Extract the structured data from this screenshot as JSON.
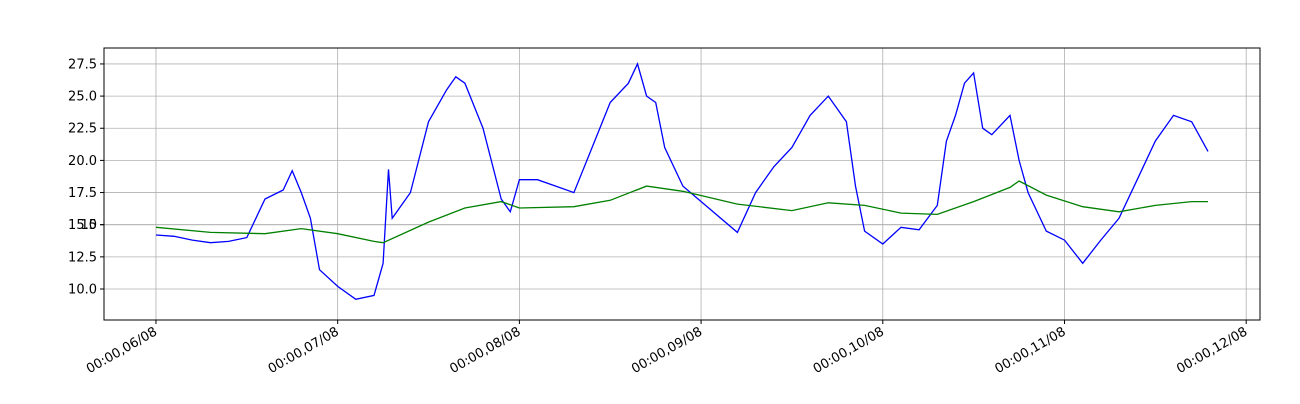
{
  "chart_data": {
    "type": "line",
    "xlim": [
      -0.286,
      6.076
    ],
    "xticks": [
      {
        "value": 0,
        "label": "00:00,06/08"
      },
      {
        "value": 1,
        "label": "00:00,07/08"
      },
      {
        "value": 2,
        "label": "00:00,08/08"
      },
      {
        "value": 3,
        "label": "00:00,09/08"
      },
      {
        "value": 4,
        "label": "00:00,10/08"
      },
      {
        "value": 5,
        "label": "00:00,11/08"
      },
      {
        "value": 6,
        "label": "00:00,12/08"
      }
    ],
    "ylim": [
      7.59,
      28.74
    ],
    "yticks": [
      {
        "value": 10,
        "label": "10.0"
      },
      12.5,
      15,
      {
        "value": 15,
        "label": "15.0"
      },
      17.5,
      {
        "value": 20,
        "label": "20.0"
      },
      22.5,
      {
        "value": 25,
        "label": "25.0"
      },
      27.5
    ],
    "grid": true,
    "series": [
      {
        "color": "#0000ff",
        "x": [
          0,
          0.1,
          0.2,
          0.3,
          0.4,
          0.5,
          0.6,
          0.7,
          0.75,
          0.8,
          0.85,
          0.9,
          1.0,
          1.1,
          1.2,
          1.25,
          1.28,
          1.3,
          1.4,
          1.5,
          1.6,
          1.65,
          1.7,
          1.8,
          1.9,
          1.95,
          2.0,
          2.1,
          2.2,
          2.3,
          2.4,
          2.5,
          2.6,
          2.65,
          2.7,
          2.75,
          2.8,
          2.9,
          3.2,
          3.3,
          3.4,
          3.5,
          3.6,
          3.7,
          3.8,
          3.85,
          3.9,
          4.0,
          4.1,
          4.2,
          4.3,
          4.35,
          4.4,
          4.45,
          4.5,
          4.55,
          4.6,
          4.7,
          4.75,
          4.8,
          4.9,
          5.0,
          5.1,
          5.2,
          5.3,
          5.4,
          5.5,
          5.6,
          5.7,
          5.79
        ],
        "values": [
          14.2,
          14.1,
          13.8,
          13.6,
          13.7,
          14.0,
          17.0,
          17.7,
          19.2,
          17.5,
          15.5,
          11.5,
          10.2,
          9.2,
          9.5,
          12.0,
          19.3,
          15.5,
          17.5,
          23.0,
          25.5,
          26.5,
          26.0,
          22.5,
          17.0,
          16.0,
          18.5,
          18.5,
          18.0,
          17.5,
          21.0,
          24.5,
          26.0,
          27.5,
          25.0,
          24.5,
          21.0,
          18.0,
          14.4,
          17.5,
          19.5,
          21.0,
          23.5,
          25.0,
          23.0,
          18.0,
          14.5,
          13.5,
          14.8,
          14.6,
          16.5,
          21.5,
          23.5,
          26.0,
          26.8,
          22.5,
          22.0,
          23.5,
          20.0,
          17.5,
          14.5,
          13.8,
          12.0,
          13.8,
          15.5,
          18.5,
          21.5,
          23.5,
          23.0,
          20.7
        ]
      },
      {
        "color": "#008000",
        "x": [
          0,
          0.3,
          0.6,
          0.8,
          1.0,
          1.2,
          1.25,
          1.5,
          1.7,
          1.9,
          2.0,
          2.3,
          2.5,
          2.7,
          2.9,
          3.2,
          3.5,
          3.7,
          3.9,
          4.1,
          4.3,
          4.5,
          4.7,
          4.75,
          4.9,
          5.1,
          5.3,
          5.5,
          5.7,
          5.79
        ],
        "values": [
          14.8,
          14.4,
          14.3,
          14.7,
          14.3,
          13.7,
          13.6,
          15.2,
          16.3,
          16.8,
          16.3,
          16.4,
          16.9,
          18.0,
          17.6,
          16.6,
          16.1,
          16.7,
          16.5,
          15.9,
          15.8,
          16.8,
          17.9,
          18.4,
          17.3,
          16.4,
          16.0,
          16.5,
          16.8,
          16.8
        ]
      }
    ]
  }
}
